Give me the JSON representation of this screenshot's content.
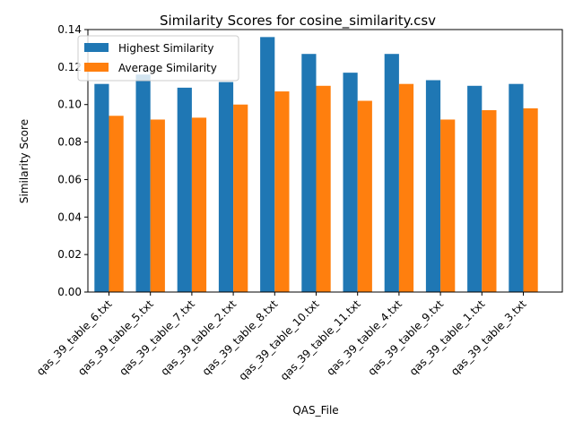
{
  "chart_data": {
    "type": "bar",
    "title": "Similarity Scores for cosine_similarity.csv",
    "xlabel": "QAS_File",
    "ylabel": "Similarity Score",
    "ylim": [
      0,
      0.14
    ],
    "yticks": [
      "0.00",
      "0.02",
      "0.04",
      "0.06",
      "0.08",
      "0.10",
      "0.12",
      "0.14"
    ],
    "categories": [
      "qas_39_table_6.txt",
      "qas_39_table_5.txt",
      "qas_39_table_7.txt",
      "qas_39_table_2.txt",
      "qas_39_table_8.txt",
      "qas_39_table_10.txt",
      "qas_39_table_11.txt",
      "qas_39_table_4.txt",
      "qas_39_table_9.txt",
      "qas_39_table_1.txt",
      "qas_39_table_3.txt"
    ],
    "series": [
      {
        "name": "Highest Similarity",
        "color": "#1f77b4",
        "values": [
          0.111,
          0.116,
          0.109,
          0.112,
          0.136,
          0.127,
          0.117,
          0.127,
          0.113,
          0.11,
          0.111
        ]
      },
      {
        "name": "Average Similarity",
        "color": "#ff7f0e",
        "values": [
          0.094,
          0.092,
          0.093,
          0.1,
          0.107,
          0.11,
          0.102,
          0.111,
          0.092,
          0.097,
          0.098
        ]
      }
    ],
    "legend": "top-left",
    "grid": false
  }
}
